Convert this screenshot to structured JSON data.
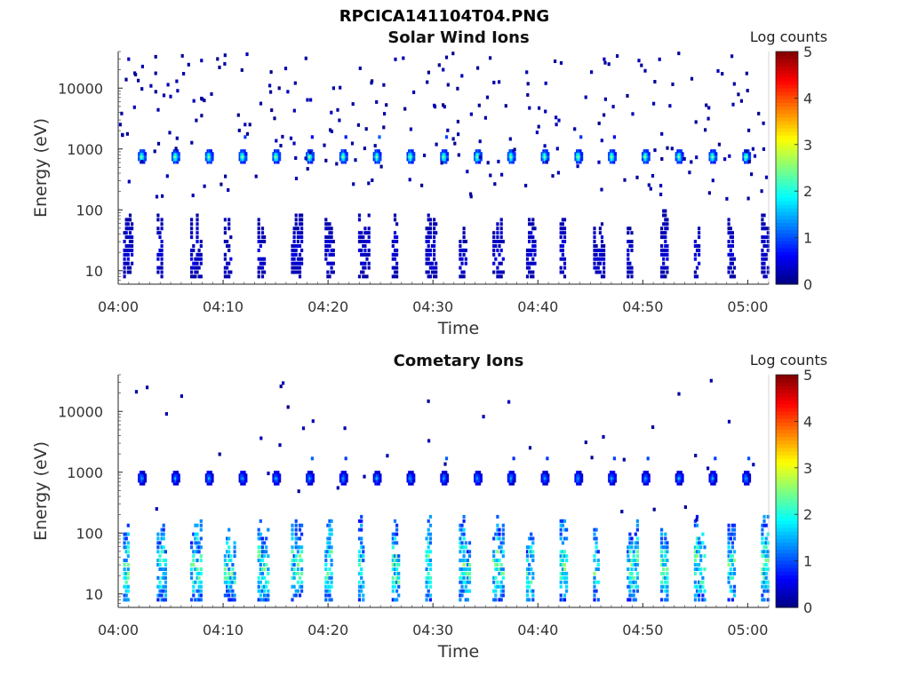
{
  "figure": {
    "title": "RPCICA141104T04.PNG"
  },
  "chart_data": [
    {
      "type": "heatmap",
      "title": "Solar Wind Ions",
      "xlabel": "Time",
      "ylabel": "Energy (eV)",
      "x_ticks": [
        "04:00",
        "04:10",
        "04:20",
        "04:30",
        "04:40",
        "04:50",
        "05:00"
      ],
      "x_range": [
        "04:00",
        "05:02"
      ],
      "yscale": "log",
      "y_ticks": [
        10,
        100,
        1000,
        10000
      ],
      "ylim": [
        6,
        40000
      ],
      "colorbar": {
        "label": "Log counts",
        "ticks": [
          0,
          1,
          2,
          3,
          4,
          5
        ],
        "range": [
          0,
          5
        ],
        "colormap": "jet"
      },
      "features": {
        "main_band_energy_eV": 750,
        "main_band_peak_log_counts": 2.7,
        "sweep_period_minutes": 3.2,
        "sweep_start_minute": 2.3,
        "low_energy_range_eV": [
          8,
          100
        ],
        "low_energy_log_counts": 0.5
      }
    },
    {
      "type": "heatmap",
      "title": "Cometary Ions",
      "xlabel": "Time",
      "ylabel": "Energy (eV)",
      "x_ticks": [
        "04:00",
        "04:10",
        "04:20",
        "04:30",
        "04:40",
        "04:50",
        "05:00"
      ],
      "x_range": [
        "04:00",
        "05:02"
      ],
      "yscale": "log",
      "y_ticks": [
        10,
        100,
        1000,
        10000
      ],
      "ylim": [
        6,
        40000
      ],
      "colorbar": {
        "label": "Log counts",
        "ticks": [
          0,
          1,
          2,
          3,
          4,
          5
        ],
        "range": [
          0,
          5
        ],
        "colormap": "jet"
      },
      "features": {
        "main_band_energy_eV": 800,
        "main_band_peak_log_counts": 1.5,
        "sweep_period_minutes": 3.2,
        "sweep_start_minute": 2.3,
        "low_energy_range_eV": [
          8,
          200
        ],
        "low_energy_peak_log_counts": 2.4
      }
    }
  ]
}
